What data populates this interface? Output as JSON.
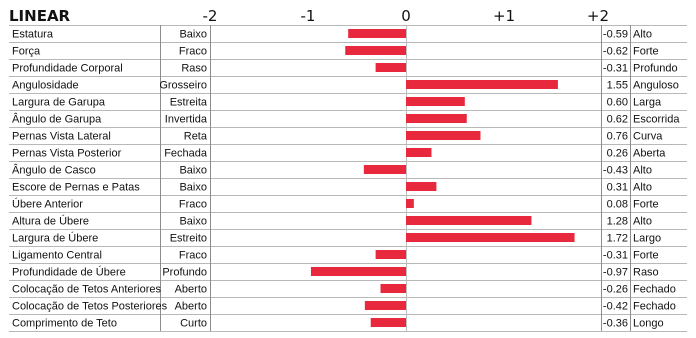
{
  "header": {
    "title": "LINEAR"
  },
  "chart_data": {
    "type": "bar",
    "orientation": "horizontal",
    "title": "LINEAR",
    "xlim": [
      -2,
      2
    ],
    "ticks": [
      {
        "value": -2,
        "label": "-2"
      },
      {
        "value": -1,
        "label": "-1"
      },
      {
        "value": 0,
        "label": "0"
      },
      {
        "value": 1,
        "label": "+1"
      },
      {
        "value": 2,
        "label": "+2"
      }
    ],
    "bar_color": "#e8283c",
    "rows": [
      {
        "trait": "Estatura",
        "low": "Baixo",
        "value": -0.59,
        "value_label": "-0.59",
        "high": "Alto"
      },
      {
        "trait": "Força",
        "low": "Fraco",
        "value": -0.62,
        "value_label": "-0.62",
        "high": "Forte"
      },
      {
        "trait": "Profundidade Corporal",
        "low": "Raso",
        "value": -0.31,
        "value_label": "-0.31",
        "high": "Profundo"
      },
      {
        "trait": "Angulosidade",
        "low": "Grosseiro",
        "value": 1.55,
        "value_label": "1.55",
        "high": "Anguloso"
      },
      {
        "trait": "Largura de Garupa",
        "low": "Estreita",
        "value": 0.6,
        "value_label": "0.60",
        "high": "Larga"
      },
      {
        "trait": "Ângulo de Garupa",
        "low": "Invertida",
        "value": 0.62,
        "value_label": "0.62",
        "high": "Escorrida"
      },
      {
        "trait": "Pernas Vista Lateral",
        "low": "Reta",
        "value": 0.76,
        "value_label": "0.76",
        "high": "Curva"
      },
      {
        "trait": "Pernas Vista Posterior",
        "low": "Fechada",
        "value": 0.26,
        "value_label": "0.26",
        "high": "Aberta"
      },
      {
        "trait": "Ângulo de Casco",
        "low": "Baixo",
        "value": -0.43,
        "value_label": "-0.43",
        "high": "Alto"
      },
      {
        "trait": "Escore de Pernas e Patas",
        "low": "Baixo",
        "value": 0.31,
        "value_label": "0.31",
        "high": "Alto"
      },
      {
        "trait": "Úbere Anterior",
        "low": "Fraco",
        "value": 0.08,
        "value_label": "0.08",
        "high": "Forte"
      },
      {
        "trait": "Altura de Úbere",
        "low": "Baixo",
        "value": 1.28,
        "value_label": "1.28",
        "high": "Alto"
      },
      {
        "trait": "Largura de Úbere",
        "low": "Estreito",
        "value": 1.72,
        "value_label": "1.72",
        "high": "Largo"
      },
      {
        "trait": "Ligamento Central",
        "low": "Fraco",
        "value": -0.31,
        "value_label": "-0.31",
        "high": "Forte"
      },
      {
        "trait": "Profundidade de Úbere",
        "low": "Profundo",
        "value": -0.97,
        "value_label": "-0.97",
        "high": "Raso"
      },
      {
        "trait": "Colocação de Tetos Anteriores",
        "low": "Aberto",
        "value": -0.26,
        "value_label": "-0.26",
        "high": "Fechado"
      },
      {
        "trait": "Colocação de Tetos Posteriores",
        "low": "Aberto",
        "value": -0.42,
        "value_label": "-0.42",
        "high": "Fechado"
      },
      {
        "trait": "Comprimento de Teto",
        "low": "Curto",
        "value": -0.36,
        "value_label": "-0.36",
        "high": "Longo"
      }
    ]
  }
}
